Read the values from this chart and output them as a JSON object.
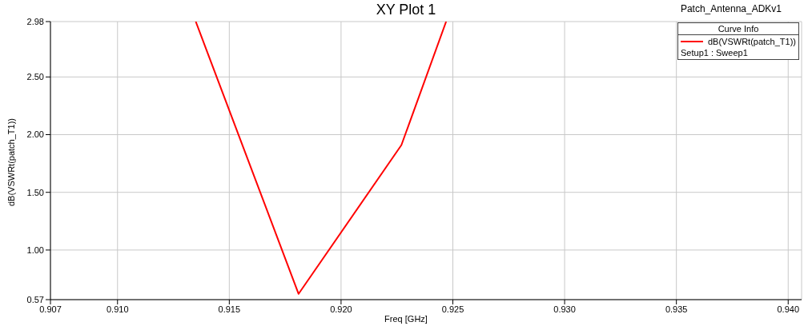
{
  "chart_data": {
    "type": "line",
    "title": "XY Plot 1",
    "xlabel": "Freq [GHz]",
    "ylabel": "dB(VSWRt(patch_T1))",
    "legend_title": "Curve Info",
    "annotations": [
      "Patch_Antenna_ADKv1",
      "Setup1 : Sweep1"
    ],
    "x": [
      0.9135,
      0.9181,
      0.9227,
      0.9247
    ],
    "series": [
      {
        "name": "dB(VSWRt(patch_T1))",
        "color": "#ff0000",
        "values": [
          2.98,
          0.62,
          1.91,
          2.98
        ]
      }
    ],
    "xlim": [
      0.907,
      0.9406
    ],
    "xticks": [
      {
        "value": 0.907,
        "label": "0.907"
      },
      {
        "value": 0.91,
        "label": "0.910"
      },
      {
        "value": 0.915,
        "label": "0.915"
      },
      {
        "value": 0.92,
        "label": "0.920"
      },
      {
        "value": 0.925,
        "label": "0.925"
      },
      {
        "value": 0.93,
        "label": "0.930"
      },
      {
        "value": 0.935,
        "label": "0.935"
      },
      {
        "value": 0.94,
        "label": "0.940"
      }
    ],
    "ylim": [
      0.57,
      2.98
    ],
    "yticks": [
      0.57,
      {
        "value": 1,
        "label": "1.00"
      },
      {
        "value": 1.5,
        "label": "1.50"
      },
      {
        "value": 2,
        "label": "2.00"
      },
      {
        "value": 2.5,
        "label": "2.50"
      },
      2.98
    ],
    "grid": true,
    "legend": "top right",
    "marker": "none",
    "line_style": "solid"
  }
}
